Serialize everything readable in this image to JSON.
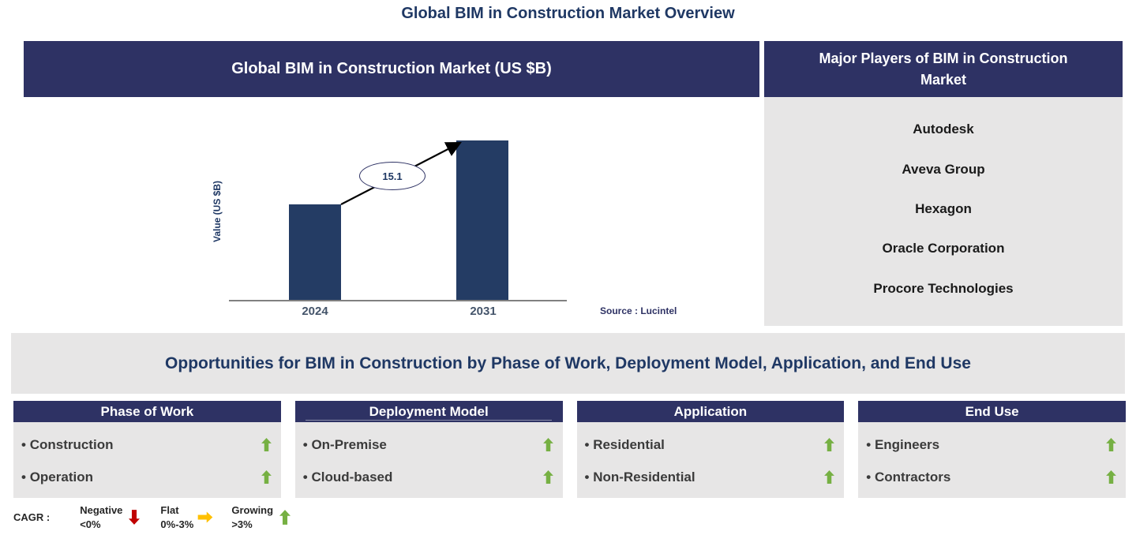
{
  "page_title": "Global BIM in Construction Market Overview",
  "colors": {
    "navy_header": "#2e3264",
    "bar_navy": "#243c64",
    "panel_gray": "#e7e6e6",
    "title_navy": "#1f3864",
    "green": "#76b043",
    "red": "#c00000",
    "yellow": "#ffc000"
  },
  "market_chart_panel": {
    "header": "Global BIM in Construction Market (US $B)",
    "y_axis_label": "Value (US $B)",
    "source": "Source : Lucintel"
  },
  "chart_data": {
    "type": "bar",
    "title": "Global BIM in Construction Market (US $B)",
    "categories": [
      "2024",
      "2031"
    ],
    "values": [
      9.1,
      15.1
    ],
    "ylabel": "Value (US $B)",
    "xlabel": "",
    "annotation": "15.1",
    "bar_color": "#243c64",
    "grid": false,
    "legend_position": "none"
  },
  "major_players_panel": {
    "header": "Major Players of BIM in Construction Market",
    "players": [
      "Autodesk",
      "Aveva Group",
      "Hexagon",
      "Oracle Corporation",
      "Procore Technologies"
    ]
  },
  "opportunities_banner": "Opportunities for BIM in Construction by Phase of Work, Deployment Model, Application, and End Use",
  "segments": [
    {
      "title": "Phase of Work",
      "items": [
        {
          "label": "Construction",
          "trend": "up"
        },
        {
          "label": "Operation",
          "trend": "up"
        }
      ]
    },
    {
      "title": "Deployment Model",
      "items": [
        {
          "label": "On-Premise",
          "trend": "up"
        },
        {
          "label": "Cloud-based",
          "trend": "up"
        }
      ]
    },
    {
      "title": "Application",
      "items": [
        {
          "label": "Residential",
          "trend": "up"
        },
        {
          "label": "Non-Residential",
          "trend": "up"
        }
      ]
    },
    {
      "title": "End Use",
      "items": [
        {
          "label": "Engineers",
          "trend": "up"
        },
        {
          "label": "Contractors",
          "trend": "up"
        }
      ]
    }
  ],
  "legend": {
    "label": "CAGR :",
    "items": [
      {
        "name": "Negative",
        "range": "<0%",
        "direction": "down",
        "color": "#c00000"
      },
      {
        "name": "Flat",
        "range": "0%-3%",
        "direction": "right",
        "color": "#ffc000"
      },
      {
        "name": "Growing",
        "range": ">3%",
        "direction": "up",
        "color": "#76b043"
      }
    ]
  }
}
